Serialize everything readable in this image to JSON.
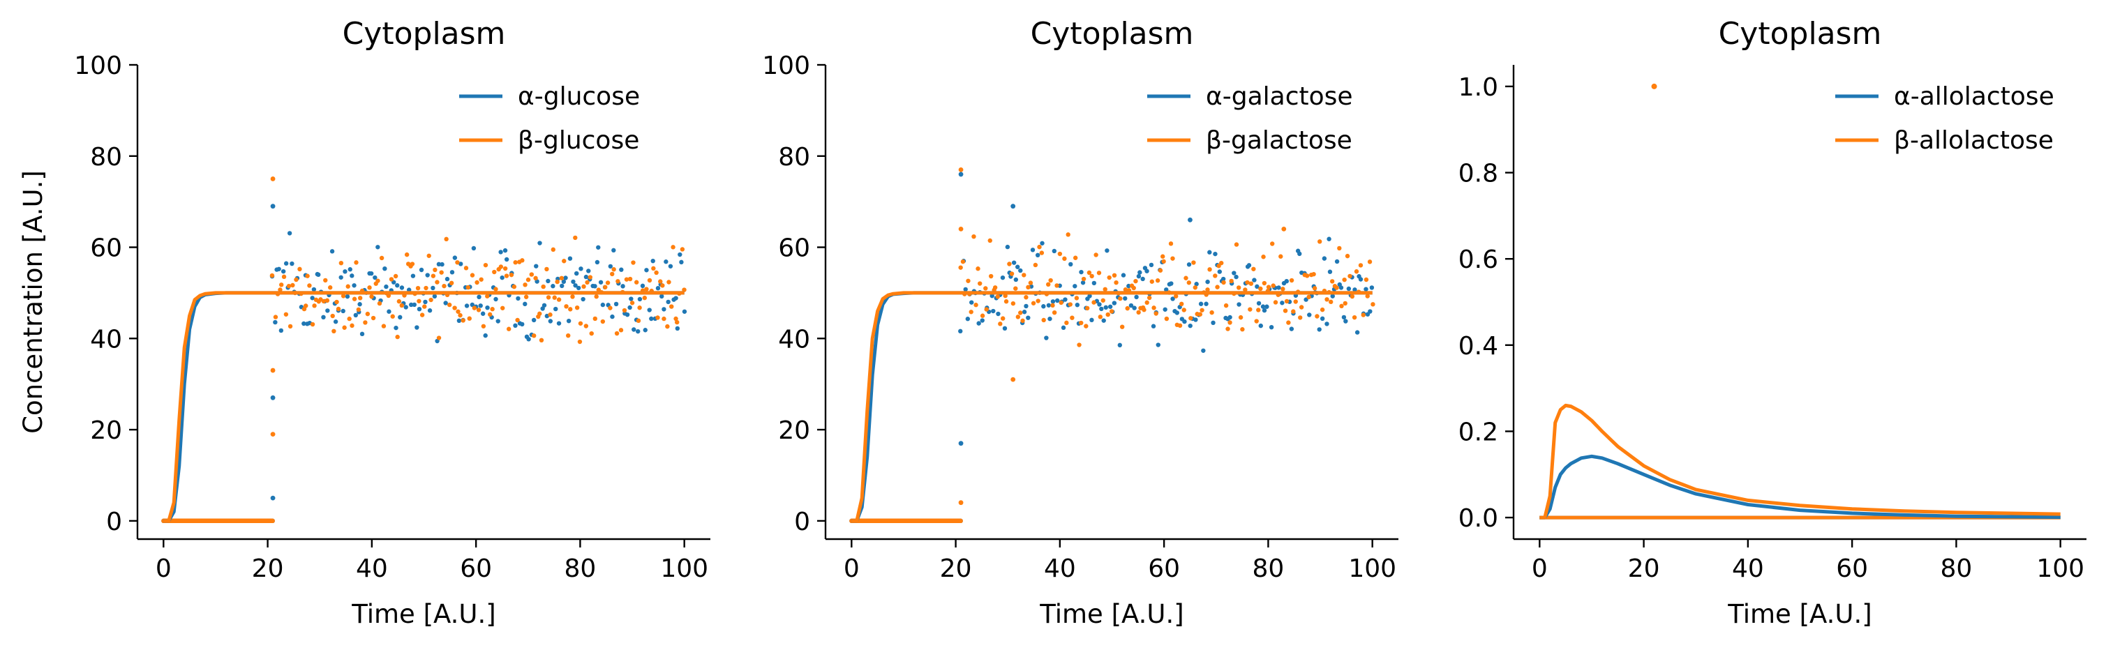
{
  "chart_data": [
    {
      "type": "line",
      "title": "Cytoplasm",
      "xlabel": "Time [A.U.]",
      "ylabel": "Concentration [A.U.]",
      "xlim": [
        -5,
        105
      ],
      "ylim": [
        -4,
        100
      ],
      "xticks": [
        0,
        20,
        40,
        60,
        80,
        100
      ],
      "yticks": [
        0,
        20,
        40,
        60,
        80,
        100
      ],
      "ytick_labels": [
        "0",
        "20",
        "40",
        "60",
        "80",
        "100"
      ],
      "legend_position": "top-right",
      "series": [
        {
          "name": "α-glucose",
          "color": "#1f77b4",
          "x": [
            0,
            1,
            2,
            3,
            4,
            5,
            6,
            7,
            8,
            10,
            12,
            15,
            20,
            30,
            50,
            100
          ],
          "y": [
            0,
            0,
            2,
            12,
            30,
            42,
            47,
            49,
            49.6,
            49.9,
            50,
            50,
            50,
            50,
            50,
            50
          ]
        },
        {
          "name": "β-glucose",
          "color": "#ff7f0e",
          "x": [
            0,
            1,
            2,
            3,
            4,
            5,
            6,
            7,
            8,
            10,
            12,
            15,
            20,
            30,
            50,
            100
          ],
          "y": [
            0,
            0,
            4,
            22,
            38,
            45,
            48.5,
            49.4,
            49.8,
            50,
            50,
            50,
            50,
            50,
            50,
            50
          ]
        }
      ],
      "scatter": {
        "x_start": 21,
        "y_center": 50,
        "y_spread": 6,
        "near_zero_until": 21,
        "outlier_points": [
          [
            21,
            75
          ],
          [
            21,
            69
          ],
          [
            21,
            33
          ],
          [
            21,
            27
          ],
          [
            21,
            19
          ],
          [
            21,
            5
          ]
        ]
      }
    },
    {
      "type": "line",
      "title": "Cytoplasm",
      "xlabel": "Time [A.U.]",
      "ylabel": "",
      "xlim": [
        -5,
        105
      ],
      "ylim": [
        -4,
        100
      ],
      "xticks": [
        0,
        20,
        40,
        60,
        80,
        100
      ],
      "yticks": [
        0,
        20,
        40,
        60,
        80,
        100
      ],
      "ytick_labels": [
        "0",
        "20",
        "40",
        "60",
        "80",
        "100"
      ],
      "legend_position": "top-right",
      "series": [
        {
          "name": "α-galactose",
          "color": "#1f77b4",
          "x": [
            0,
            1,
            2,
            3,
            4,
            5,
            6,
            7,
            8,
            10,
            12,
            15,
            20,
            30,
            50,
            100
          ],
          "y": [
            0,
            0,
            3,
            14,
            32,
            43,
            47.5,
            49.2,
            49.7,
            49.9,
            50,
            50,
            50,
            50,
            50,
            50
          ]
        },
        {
          "name": "β-galactose",
          "color": "#ff7f0e",
          "x": [
            0,
            1,
            2,
            3,
            4,
            5,
            6,
            7,
            8,
            10,
            12,
            15,
            20,
            30,
            50,
            100
          ],
          "y": [
            0,
            0,
            5,
            24,
            40,
            46,
            48.7,
            49.5,
            49.8,
            50,
            50,
            50,
            50,
            50,
            50,
            50
          ]
        }
      ],
      "scatter": {
        "x_start": 21,
        "y_center": 50,
        "y_spread": 6,
        "near_zero_until": 21,
        "outlier_points": [
          [
            21,
            77
          ],
          [
            21,
            76
          ],
          [
            21,
            64
          ],
          [
            21,
            17
          ],
          [
            21,
            4
          ],
          [
            31,
            69
          ],
          [
            31,
            31
          ],
          [
            65,
            66
          ],
          [
            83,
            64
          ]
        ]
      }
    },
    {
      "type": "line",
      "title": "Cytoplasm",
      "xlabel": "Time [A.U.]",
      "ylabel": "",
      "xlim": [
        -5,
        105
      ],
      "ylim": [
        -0.05,
        1.05
      ],
      "xticks": [
        0,
        20,
        40,
        60,
        80,
        100
      ],
      "yticks": [
        0,
        0.2,
        0.4,
        0.6,
        0.8,
        1.0
      ],
      "ytick_labels": [
        "0.0",
        "0.2",
        "0.4",
        "0.6",
        "0.8",
        "1.0"
      ],
      "legend_position": "top-right",
      "series": [
        {
          "name": "α-allolactose",
          "color": "#1f77b4",
          "x": [
            0,
            1,
            2,
            3,
            4,
            5,
            6,
            8,
            10,
            12,
            15,
            20,
            25,
            30,
            40,
            50,
            60,
            70,
            80,
            100
          ],
          "y": [
            0,
            0,
            0.02,
            0.07,
            0.1,
            0.115,
            0.125,
            0.138,
            0.142,
            0.138,
            0.125,
            0.1,
            0.075,
            0.055,
            0.03,
            0.017,
            0.01,
            0.006,
            0.003,
            0.001
          ]
        },
        {
          "name": "β-allolactose",
          "color": "#ff7f0e",
          "x": [
            0,
            1,
            2,
            3,
            4,
            5,
            6,
            8,
            10,
            12,
            15,
            20,
            25,
            30,
            40,
            50,
            60,
            70,
            80,
            100
          ],
          "y": [
            0,
            0,
            0.05,
            0.22,
            0.25,
            0.26,
            0.258,
            0.245,
            0.225,
            0.2,
            0.165,
            0.12,
            0.088,
            0.065,
            0.04,
            0.028,
            0.02,
            0.015,
            0.012,
            0.008
          ]
        }
      ],
      "zero_lines": true,
      "outlier_points": [
        [
          22,
          1.0
        ]
      ]
    }
  ]
}
